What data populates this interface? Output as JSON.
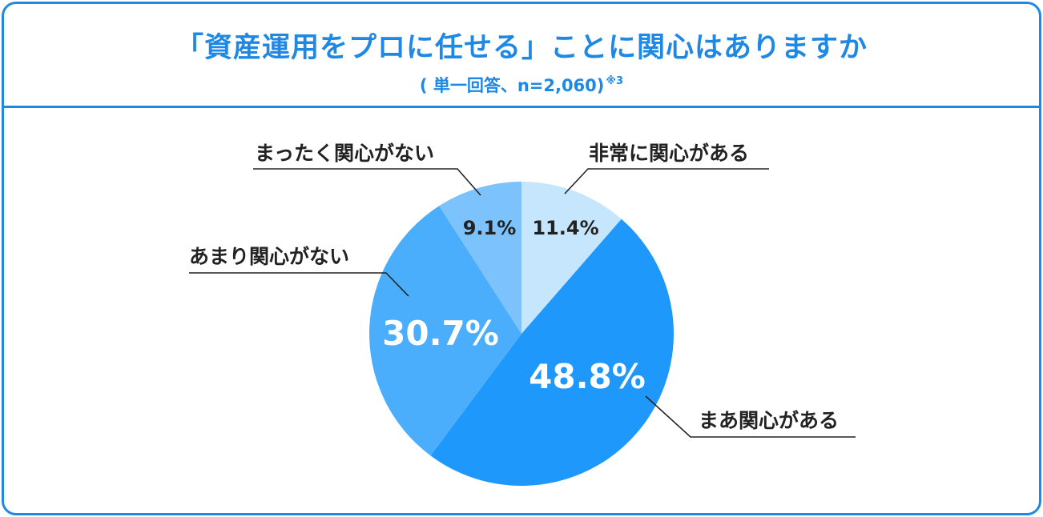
{
  "header": {
    "title": "「資産運用をプロに任せる」ことに関心はありますか",
    "subtitle": "( 単一回答、n=2,060)",
    "subtitle_note": "※3"
  },
  "chart_data": {
    "type": "pie",
    "start_angle_deg": 0,
    "direction": "clockwise",
    "slices": [
      {
        "label": "非常に関心がある",
        "value": 11.4,
        "value_label": "11.4%",
        "color": "#c5e6fd"
      },
      {
        "label": "まあ関心がある",
        "value": 48.8,
        "value_label": "48.8%",
        "color": "#1f98fb"
      },
      {
        "label": "あまり関心がない",
        "value": 30.7,
        "value_label": "30.7%",
        "color": "#4aaefc"
      },
      {
        "label": "まったく関心がない",
        "value": 9.1,
        "value_label": "9.1%",
        "color": "#7cc2fd"
      }
    ],
    "legend": "none",
    "line_color": "#222222"
  }
}
